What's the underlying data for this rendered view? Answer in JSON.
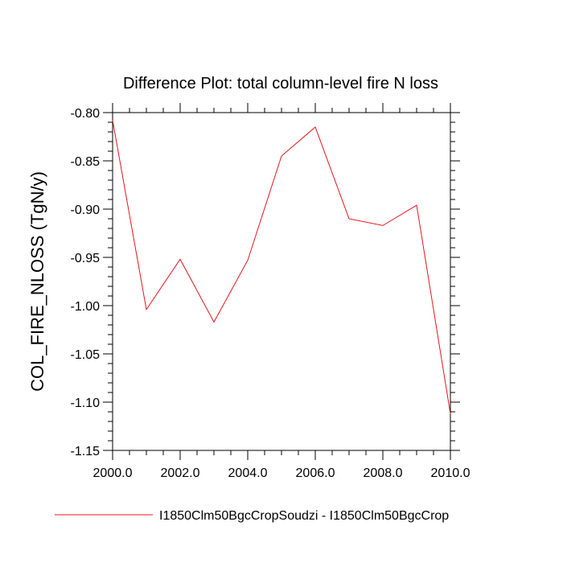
{
  "chart_data": {
    "type": "line",
    "title": "Difference Plot: total column-level fire N loss",
    "xlabel": "",
    "ylabel": "COL_FIRE_NLOSS  (TgN/y)",
    "xlim": [
      2000,
      2010
    ],
    "ylim": [
      -1.15,
      -0.8
    ],
    "x_ticks": [
      2000,
      2002,
      2004,
      2006,
      2008,
      2010
    ],
    "x_tick_labels": [
      "2000.0",
      "2002.0",
      "2004.0",
      "2006.0",
      "2008.0",
      "2010.0"
    ],
    "y_ticks": [
      -0.8,
      -0.85,
      -0.9,
      -0.95,
      -1.0,
      -1.05,
      -1.1,
      -1.15
    ],
    "y_tick_labels": [
      "-0.80",
      "-0.85",
      "-0.90",
      "-0.95",
      "-1.00",
      "-1.05",
      "-1.10",
      "-1.15"
    ],
    "grid": false,
    "legend_position": "bottom",
    "x": [
      2000,
      2001,
      2002,
      2003,
      2004,
      2005,
      2006,
      2007,
      2008,
      2009,
      2010
    ],
    "series": [
      {
        "name": "I1850Clm50BgcCropSoudzi - I1850Clm50BgcCrop",
        "color": "#e8141e",
        "values": [
          -0.808,
          -1.004,
          -0.952,
          -1.017,
          -0.953,
          -0.845,
          -0.815,
          -0.91,
          -0.917,
          -0.896,
          -1.112
        ]
      }
    ]
  }
}
